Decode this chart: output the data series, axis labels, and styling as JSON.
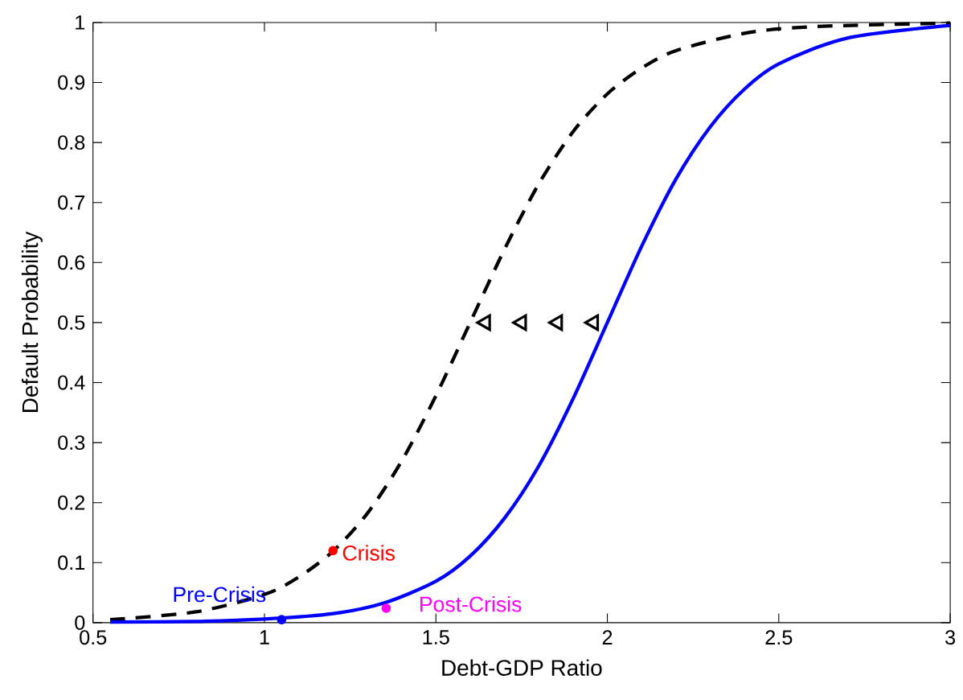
{
  "chart_data": {
    "type": "line",
    "xlabel": "Debt-GDP Ratio",
    "ylabel": "Default Probability",
    "xlim": [
      0.5,
      3
    ],
    "ylim": [
      0,
      1
    ],
    "xticks": [
      0.5,
      1,
      1.5,
      2,
      2.5,
      3
    ],
    "yticks": [
      0,
      0.1,
      0.2,
      0.3,
      0.4,
      0.5,
      0.6,
      0.7,
      0.8,
      0.9,
      1
    ],
    "grid": false,
    "series": [
      {
        "color": "#000000",
        "line_style": "dashed",
        "marker": "none",
        "x": [
          0.55,
          0.8,
          1.0,
          1.1,
          1.2,
          1.3,
          1.4,
          1.5,
          1.6,
          1.7,
          1.8,
          1.9,
          2.0,
          2.1,
          2.2,
          2.4,
          2.6,
          3.0
        ],
        "values": [
          0.005,
          0.018,
          0.047,
          0.076,
          0.119,
          0.182,
          0.269,
          0.378,
          0.5,
          0.622,
          0.731,
          0.818,
          0.881,
          0.924,
          0.953,
          0.982,
          0.993,
          0.999
        ]
      },
      {
        "color": "#0000ff",
        "line_style": "solid",
        "marker": "none",
        "x": [
          0.55,
          0.8,
          1.0,
          1.2,
          1.35,
          1.5,
          1.6,
          1.7,
          1.8,
          1.9,
          2.0,
          2.1,
          2.2,
          2.3,
          2.4,
          2.5,
          2.7,
          3.0
        ],
        "values": [
          0.001,
          0.002,
          0.006,
          0.015,
          0.033,
          0.069,
          0.111,
          0.174,
          0.261,
          0.373,
          0.5,
          0.627,
          0.739,
          0.826,
          0.889,
          0.931,
          0.974,
          0.995
        ]
      },
      {
        "type": "scatter",
        "color": "#000000",
        "marker": "triangle",
        "x": [
          1.645,
          1.75,
          1.855,
          1.96
        ],
        "values": [
          0.5,
          0.5,
          0.5,
          0.5
        ]
      },
      {
        "type": "scatter",
        "color": "#0000ff",
        "marker": "circle",
        "x": [
          1.05
        ],
        "values": [
          0.005
        ]
      },
      {
        "type": "scatter",
        "color": "#ff0000",
        "marker": "circle",
        "x": [
          1.2
        ],
        "values": [
          0.12
        ]
      },
      {
        "type": "scatter",
        "color": "#ff00ff",
        "marker": "circle",
        "x": [
          1.355
        ],
        "values": [
          0.024
        ]
      }
    ],
    "annotations": [
      {
        "text": "Pre-Crisis",
        "x": 1.05,
        "y": 0.005
      },
      {
        "text": "Crisis",
        "x": 1.2,
        "y": 0.12
      },
      {
        "text": "Post-Crisis",
        "x": 1.355,
        "y": 0.024
      }
    ]
  }
}
